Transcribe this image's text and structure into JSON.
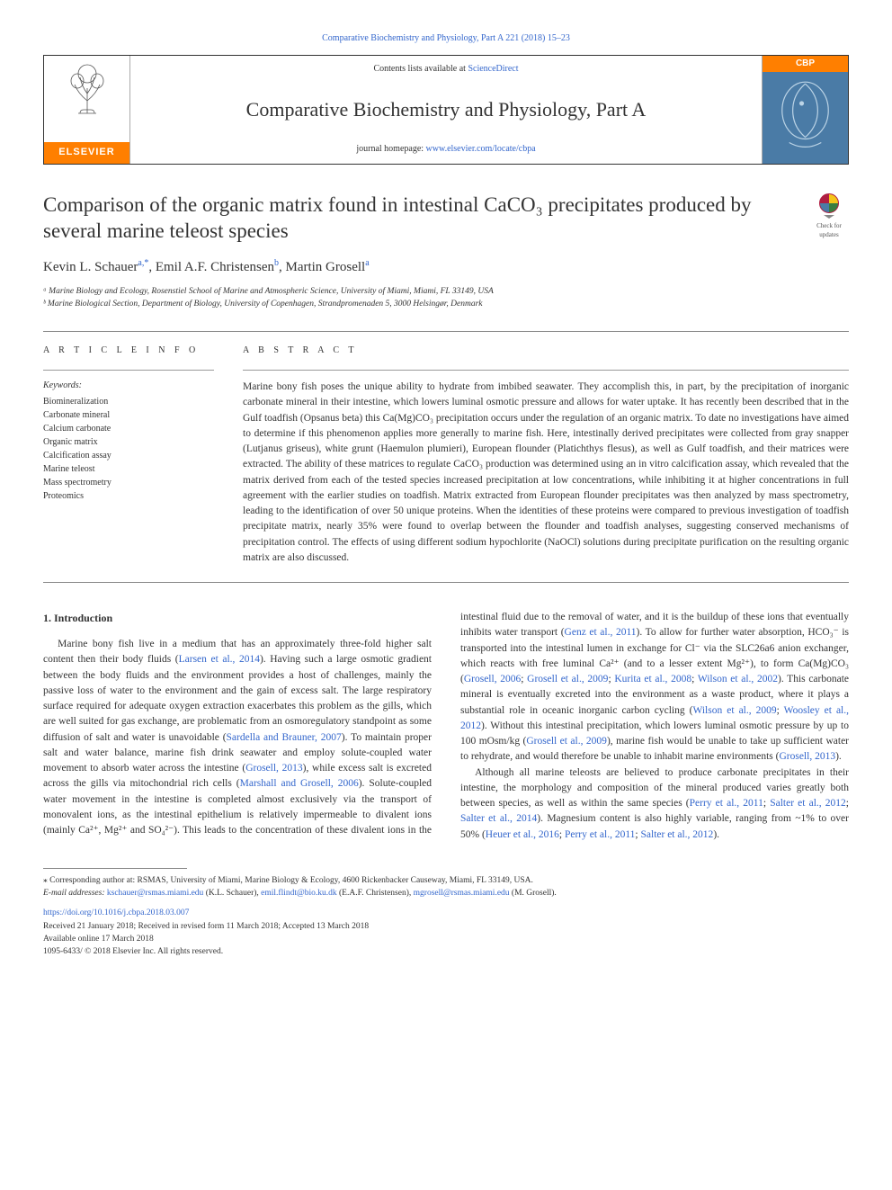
{
  "top_ref": "Comparative Biochemistry and Physiology, Part A 221 (2018) 15–23",
  "header": {
    "contents_prefix": "Contents lists available at ",
    "contents_link": "ScienceDirect",
    "journal_name": "Comparative Biochemistry and Physiology, Part A",
    "homepage_prefix": "journal homepage: ",
    "homepage_link": "www.elsevier.com/locate/cbpa",
    "elsevier_label": "ELSEVIER",
    "cbp_label": "CBP",
    "colors": {
      "elsevier_orange": "#ff7f00",
      "link_blue": "#3366cc",
      "cover_blue": "#4a7ba6"
    }
  },
  "check_updates": {
    "line1": "Check for",
    "line2": "updates"
  },
  "article": {
    "title": "Comparison of the organic matrix found in intestinal CaCO₃ precipitates produced by several marine teleost species",
    "authors_html": "Kevin L. Schauer",
    "author_a_sup": "a,",
    "author_a_star": "*",
    "author2": ", Emil A.F. Christensen",
    "author_b_sup": "b",
    "author3": ", Martin Grosell",
    "author3_sup": "a",
    "affil_a": "ᵃ Marine Biology and Ecology, Rosenstiel School of Marine and Atmospheric Science, University of Miami, Miami, FL 33149, USA",
    "affil_b": "ᵇ Marine Biological Section, Department of Biology, University of Copenhagen, Strandpromenaden 5, 3000 Helsingør, Denmark"
  },
  "labels": {
    "article_info": "A R T I C L E  I N F O",
    "abstract": "A B S T R A C T",
    "keywords": "Keywords:"
  },
  "keywords": [
    "Biomineralization",
    "Carbonate mineral",
    "Calcium carbonate",
    "Organic matrix",
    "Calcification assay",
    "Marine teleost",
    "Mass spectrometry",
    "Proteomics"
  ],
  "abstract": "Marine bony fish poses the unique ability to hydrate from imbibed seawater. They accomplish this, in part, by the precipitation of inorganic carbonate mineral in their intestine, which lowers luminal osmotic pressure and allows for water uptake. It has recently been described that in the Gulf toadfish (Opsanus beta) this Ca(Mg)CO₃ precipitation occurs under the regulation of an organic matrix. To date no investigations have aimed to determine if this phenomenon applies more generally to marine fish. Here, intestinally derived precipitates were collected from gray snapper (Lutjanus griseus), white grunt (Haemulon plumieri), European flounder (Platichthys flesus), as well as Gulf toadfish, and their matrices were extracted. The ability of these matrices to regulate CaCO₃ production was determined using an in vitro calcification assay, which revealed that the matrix derived from each of the tested species increased precipitation at low concentrations, while inhibiting it at higher concentrations in full agreement with the earlier studies on toadfish. Matrix extracted from European flounder precipitates was then analyzed by mass spectrometry, leading to the identification of over 50 unique proteins. When the identities of these proteins were compared to previous investigation of toadfish precipitate matrix, nearly 35% were found to overlap between the flounder and toadfish analyses, suggesting conserved mechanisms of precipitation control. The effects of using different sodium hypochlorite (NaOCl) solutions during precipitate purification on the resulting organic matrix are also discussed.",
  "intro_heading": "1. Introduction",
  "intro_p1_a": "Marine bony fish live in a medium that has an approximately three-fold higher salt content then their body fluids (",
  "intro_p1_cite1": "Larsen et al., 2014",
  "intro_p1_b": "). Having such a large osmotic gradient between the body fluids and the environment provides a host of challenges, mainly the passive loss of water to the environment and the gain of excess salt. The large respiratory surface required for adequate oxygen extraction exacerbates this problem as the gills, which are well suited for gas exchange, are problematic from an osmoregulatory standpoint as some diffusion of salt and water is unavoidable (",
  "intro_p1_cite2": "Sardella and Brauner, 2007",
  "intro_p1_c": "). To maintain proper salt and water balance, marine fish drink seawater and employ solute-coupled water movement to absorb water across the intestine (",
  "intro_p1_cite3": "Grosell, 2013",
  "intro_p1_d": "), while excess salt is excreted across the gills via mitochondrial rich cells (",
  "intro_p1_cite4": "Marshall and Grosell, 2006",
  "intro_p1_e": "). Solute-coupled water movement in the intestine is completed almost exclusively via the transport of monovalent ions, as the intestinal epithelium is relatively impermeable to divalent ions (mainly Ca²⁺, Mg²⁺ and SO₄²⁻). This leads to the concentration of these divalent ions in the intestinal fluid due to the removal of water, and it is the buildup of these ions that eventually inhibits water transport (",
  "intro_p1_cite5": "Genz et al., 2011",
  "intro_p1_f": "). To allow for further water absorption, HCO₃⁻ is transported into the intestinal lumen in exchange for Cl⁻ via the SLC26a6 anion exchanger, which reacts with free luminal Ca²⁺ (and to a lesser extent Mg²⁺), to form Ca(Mg)CO₃ (",
  "intro_p1_cite6": "Grosell, 2006",
  "intro_p1_g": "; ",
  "intro_p1_cite7": "Grosell et al., 2009",
  "intro_p1_h": "; ",
  "intro_p1_cite8": "Kurita et al., 2008",
  "intro_p1_i": "; ",
  "intro_p1_cite9": "Wilson et al., 2002",
  "intro_p1_j": "). This carbonate mineral is eventually excreted into the environment as a waste product, where it plays a substantial role in oceanic inorganic carbon cycling (",
  "intro_p1_cite10": "Wilson et al., 2009",
  "intro_p1_k": "; ",
  "intro_p1_cite11": "Woosley et al., 2012",
  "intro_p1_l": "). Without this intestinal precipitation, which lowers luminal osmotic pressure by up to 100 mOsm/kg (",
  "intro_p1_cite12": "Grosell et al., 2009",
  "intro_p1_m": "), marine fish would be unable to take up sufficient water to rehydrate, and would therefore be unable to inhabit marine environments (",
  "intro_p1_cite13": "Grosell, 2013",
  "intro_p1_n": ").",
  "intro_p2_a": "Although all marine teleosts are believed to produce carbonate precipitates in their intestine, the morphology and composition of the mineral produced varies greatly both between species, as well as within the same species (",
  "intro_p2_cite1": "Perry et al., 2011",
  "intro_p2_b": "; ",
  "intro_p2_cite2": "Salter et al., 2012",
  "intro_p2_c": "; ",
  "intro_p2_cite3": "Salter et al., 2014",
  "intro_p2_d": "). Magnesium content is also highly variable, ranging from ~1% to over 50% (",
  "intro_p2_cite4": "Heuer et al., 2016",
  "intro_p2_e": "; ",
  "intro_p2_cite5": "Perry et al., 2011",
  "intro_p2_f": "; ",
  "intro_p2_cite6": "Salter et al., 2012",
  "intro_p2_g": ").",
  "footer": {
    "corr_label": "⁎ Corresponding author at: RSMAS, University of Miami, Marine Biology & Ecology, 4600 Rickenbacker Causeway, Miami, FL 33149, USA.",
    "email_label": "E-mail addresses: ",
    "email1": "kschauer@rsmas.miami.edu",
    "email1_who": " (K.L. Schauer), ",
    "email2": "emil.flindt@bio.ku.dk",
    "email2_who": " (E.A.F. Christensen), ",
    "email3": "mgrosell@rsmas.miami.edu",
    "email3_who": " (M. Grosell).",
    "doi": "https://doi.org/10.1016/j.cbpa.2018.03.007",
    "received": "Received 21 January 2018; Received in revised form 11 March 2018; Accepted 13 March 2018",
    "available": "Available online 17 March 2018",
    "copyright": "1095-6433/ © 2018 Elsevier Inc. All rights reserved."
  }
}
